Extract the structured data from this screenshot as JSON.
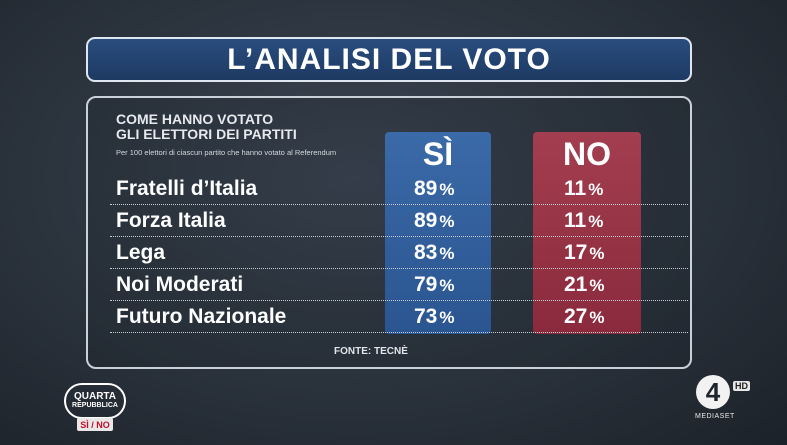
{
  "title": "L’ANALISI DEL VOTO",
  "subtitle_line1": "COME HANNO VOTATO",
  "subtitle_line2": "GLI ELETTORI DEI PARTITI",
  "note": "Per 100 elettori di ciascun partito che hanno votato al Referendum",
  "columns": {
    "si": "SÌ",
    "no": "NO"
  },
  "percent_sign": "%",
  "rows": [
    {
      "party": "Fratelli d’Italia",
      "si": "89",
      "no": "11"
    },
    {
      "party": "Forza Italia",
      "si": "89",
      "no": "11"
    },
    {
      "party": "Lega",
      "si": "83",
      "no": "17"
    },
    {
      "party": "Noi Moderati",
      "si": "79",
      "no": "21"
    },
    {
      "party": "Futuro Nazionale",
      "si": "73",
      "no": "27"
    }
  ],
  "source": "FONTE: TECNÈ",
  "logo_left": {
    "line1": "QUARTA",
    "line2": "REPUBBLICA",
    "badge": "SÌ / NO"
  },
  "logo_right": {
    "number": "4",
    "hd": "HD",
    "network": "MEDIASET"
  },
  "colors": {
    "title_bg": "#1d3a63",
    "si_column": "#2a5590",
    "no_column": "#8a2a3c"
  }
}
